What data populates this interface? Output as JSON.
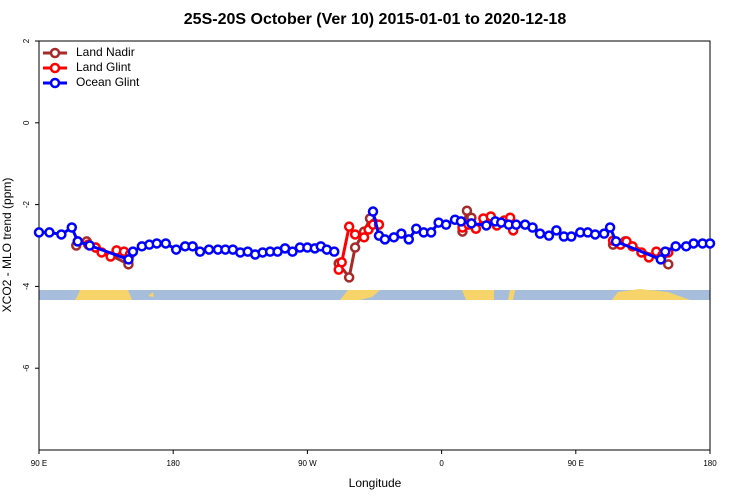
{
  "chart_data": {
    "type": "line",
    "title": "25S-20S October (Ver 10)   2015-01-01 to 2020-12-18",
    "x_label": "Longitude",
    "y_label": "XCO2 - MLO trend (ppm)",
    "xlim": [
      90,
      540
    ],
    "ylim": [
      -8,
      2
    ],
    "xticks": [
      {
        "value": 90,
        "label": "90 E"
      },
      180,
      {
        "value": 270,
        "label": "90 W"
      },
      {
        "value": 360,
        "label": "0"
      },
      {
        "value": 450,
        "label": "90 E"
      },
      {
        "value": 540,
        "label": "180"
      }
    ],
    "yticks": [
      2,
      0,
      -2,
      -4,
      -6
    ],
    "legend": "topleft",
    "series": [
      {
        "name": "Land Nadir",
        "color": "#a52a2a",
        "x": [
          115,
          122,
          128,
          150,
          null,
          291,
          298,
          302,
          308,
          312,
          315,
          null,
          374,
          377,
          380,
          null,
          475,
          483,
          512
        ],
        "values": [
          -3.0,
          -2.9,
          -3.05,
          -3.46,
          null,
          -3.44,
          -3.78,
          -3.05,
          -2.66,
          -2.34,
          -2.46,
          null,
          -2.66,
          -2.15,
          -2.32,
          null,
          -2.98,
          -2.9,
          -3.46
        ]
      },
      {
        "name": "Land Glint",
        "color": "#ff0000",
        "x": [
          116,
          123,
          128,
          132,
          138,
          142,
          147,
          151,
          null,
          291,
          293,
          298,
          302,
          308,
          311,
          314,
          318,
          null,
          374,
          378,
          383,
          388,
          393,
          397,
          402,
          406,
          408,
          null,
          475,
          480,
          484,
          488,
          494,
          499,
          504,
          508,
          512
        ],
        "values": [
          -2.9,
          -2.98,
          -3.05,
          -3.17,
          -3.27,
          -3.12,
          -3.15,
          -3.22,
          null,
          -3.59,
          -3.41,
          -2.54,
          -2.73,
          -2.8,
          -2.61,
          -2.49,
          -2.49,
          null,
          -2.56,
          -2.49,
          -2.59,
          -2.34,
          -2.29,
          -2.51,
          -2.39,
          -2.32,
          -2.63,
          null,
          -2.88,
          -2.98,
          -2.9,
          -3.02,
          -3.17,
          -3.29,
          -3.15,
          -3.24,
          -3.17
        ]
      },
      {
        "name": "Ocean Glint",
        "color": "#0000ff",
        "x": [
          90,
          97,
          105,
          112,
          116,
          124,
          150,
          153,
          159,
          164,
          169,
          175,
          182,
          188,
          193,
          198,
          204,
          210,
          215,
          220,
          225,
          230,
          235,
          240,
          245,
          250,
          255,
          260,
          265,
          270,
          275,
          279,
          283,
          288,
          null,
          314,
          318,
          322,
          328,
          333,
          338,
          343,
          348,
          353,
          358,
          363,
          369,
          373,
          380,
          390,
          396,
          400,
          405,
          410,
          416,
          421,
          426,
          432,
          437,
          442,
          447,
          453,
          458,
          463,
          469,
          473,
          477,
          507,
          510,
          517,
          524,
          529,
          535,
          540
        ],
        "values": [
          -2.68,
          -2.68,
          -2.73,
          -2.56,
          -2.9,
          -3.0,
          -3.34,
          -3.15,
          -3.02,
          -2.98,
          -2.95,
          -2.95,
          -3.1,
          -3.02,
          -3.02,
          -3.15,
          -3.1,
          -3.1,
          -3.1,
          -3.1,
          -3.17,
          -3.15,
          -3.22,
          -3.17,
          -3.15,
          -3.15,
          -3.07,
          -3.15,
          -3.05,
          -3.05,
          -3.07,
          -3.02,
          -3.1,
          -3.15,
          null,
          -2.17,
          -2.76,
          -2.85,
          -2.8,
          -2.71,
          -2.85,
          -2.59,
          -2.68,
          -2.68,
          -2.44,
          -2.49,
          -2.37,
          -2.41,
          -2.46,
          -2.51,
          -2.41,
          -2.44,
          -2.49,
          -2.49,
          -2.49,
          -2.56,
          -2.71,
          -2.76,
          -2.63,
          -2.78,
          -2.78,
          -2.68,
          -2.68,
          -2.73,
          -2.71,
          -2.56,
          -2.9,
          -3.34,
          -3.15,
          -3.02,
          -3.02,
          -2.95,
          -2.95,
          -2.95
        ]
      }
    ]
  }
}
